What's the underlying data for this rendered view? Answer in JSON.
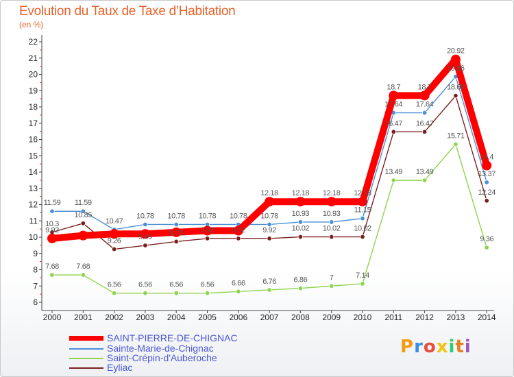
{
  "header": {
    "title": "Evolution du Taux de Taxe d’Habitation",
    "subtitle": "(en %)"
  },
  "logo": {
    "text": "Proxiti",
    "colors": [
      "#f39c12",
      "#3a8ee6",
      "#e74c3c",
      "#f1c40f",
      "#2ecc71",
      "#e67e22",
      "#9b59b6"
    ]
  },
  "chart_data": {
    "type": "line",
    "x": [
      "2000",
      "2001",
      "2002",
      "2003",
      "2004",
      "2005",
      "2006",
      "2007",
      "2008",
      "2009",
      "2010",
      "2011",
      "2012",
      "2013",
      "2014"
    ],
    "ylim": [
      6,
      22
    ],
    "yticks": [
      "6",
      "7",
      "8",
      "9",
      "10",
      "11",
      "12",
      "13",
      "14",
      "15",
      "16",
      "17",
      "18",
      "19",
      "20",
      "21",
      "22"
    ],
    "grid": false,
    "legend_position": "bottom-left",
    "series": [
      {
        "name": "SAINT-PIERRE-DE-CHIGNAC",
        "color": "#ff0000",
        "values": [
          9.92,
          10.1,
          10.2,
          10.2,
          10.3,
          10.4,
          10.4,
          12.18,
          12.18,
          12.18,
          12.18,
          18.7,
          18.7,
          20.92,
          14.4
        ],
        "labels": [
          "9.92",
          "",
          "",
          "",
          "",
          "",
          "",
          "12.18",
          "12.18",
          "12.18",
          "12.18",
          "18.7",
          "18.7",
          "20.92",
          "14.4"
        ]
      },
      {
        "name": "Sainte-Marie-de-Chignac",
        "color": "#4a8fd8",
        "values": [
          11.59,
          11.59,
          10.47,
          10.78,
          10.78,
          10.78,
          10.78,
          10.78,
          10.93,
          10.93,
          11.15,
          17.64,
          17.64,
          19.86,
          13.37
        ],
        "labels": [
          "11.59",
          "11.59",
          "10.47",
          "10.78",
          "10.78",
          "10.78",
          "10.78",
          "10.78",
          "10.93",
          "10.93",
          "11.15",
          "17.64",
          "17.64",
          "19.86",
          "13.37"
        ]
      },
      {
        "name": "Saint-Crépin-d'Auberoche",
        "color": "#8ed44f",
        "values": [
          7.68,
          7.68,
          6.56,
          6.56,
          6.56,
          6.56,
          6.66,
          6.76,
          6.86,
          7,
          7.14,
          13.49,
          13.49,
          15.71,
          9.36
        ],
        "labels": [
          "7.68",
          "7.68",
          "6.56",
          "6.56",
          "6.56",
          "6.56",
          "6.66",
          "6.76",
          "6.86",
          "7",
          "7.14",
          "13.49",
          "13.49",
          "15.71",
          "9.36"
        ]
      },
      {
        "name": "Eyliac",
        "color": "#7a1f1f",
        "values": [
          10.3,
          10.85,
          9.26,
          9.49,
          9.73,
          9.92,
          9.92,
          9.92,
          10.02,
          10.02,
          10.02,
          16.47,
          16.47,
          18.69,
          12.24
        ],
        "labels": [
          "10.3",
          "10.85",
          "9.26",
          "9.49",
          "9.73",
          "9.92",
          "9.92",
          "9.92",
          "10.02",
          "10.02",
          "10.02",
          "16.47",
          "16.47",
          "18.69",
          "12.24"
        ]
      }
    ]
  }
}
